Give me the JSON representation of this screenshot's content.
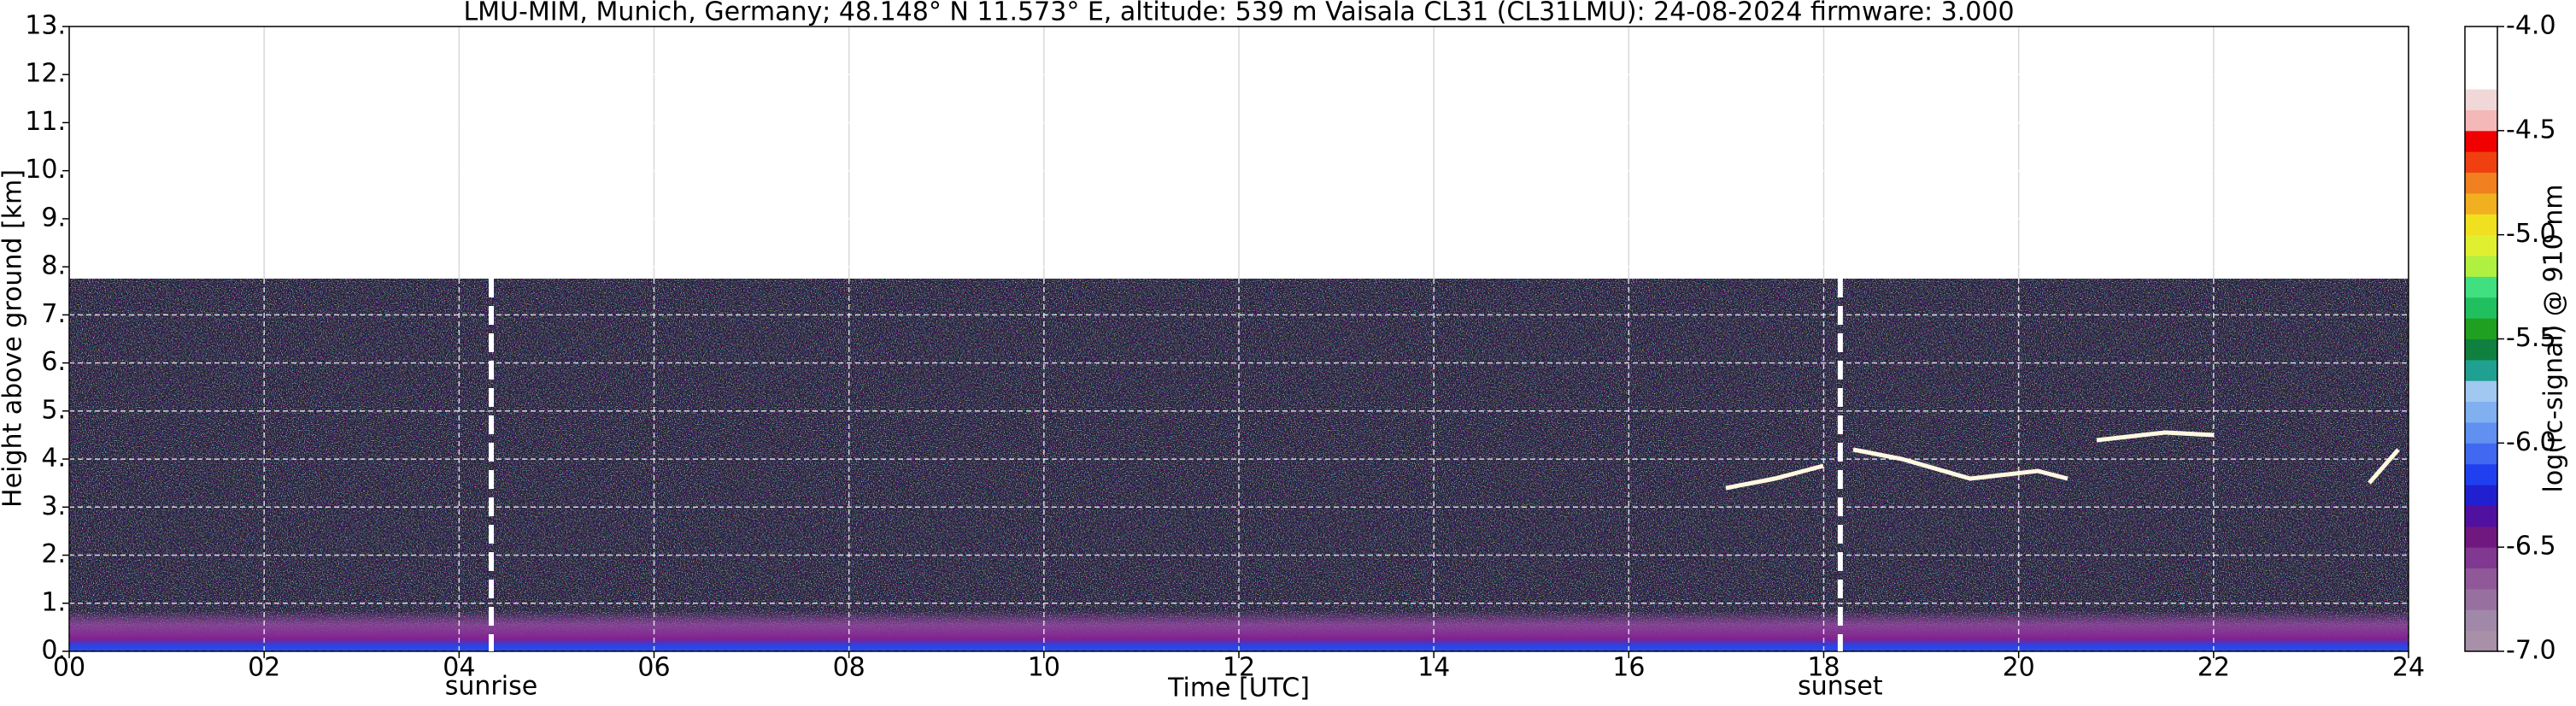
{
  "chart_data": {
    "type": "heatmap",
    "title": "LMU-MIM, Munich, Germany; 48.148° N 11.573° E, altitude: 539 m    Vaisala CL31 (CL31LMU): 24-08-2024    firmware: 3.000",
    "xlabel": "Time [UTC]",
    "ylabel": "Height above ground [km]",
    "xlim": [
      0,
      24
    ],
    "xticks": [
      {
        "value": 0,
        "label": "00"
      },
      {
        "value": 2,
        "label": "02"
      },
      {
        "value": 4,
        "label": "04"
      },
      {
        "value": 6,
        "label": "06"
      },
      {
        "value": 8,
        "label": "08"
      },
      {
        "value": 10,
        "label": "10"
      },
      {
        "value": 12,
        "label": "12"
      },
      {
        "value": 14,
        "label": "14"
      },
      {
        "value": 16,
        "label": "16"
      },
      {
        "value": 18,
        "label": "18"
      },
      {
        "value": 20,
        "label": "20"
      },
      {
        "value": 22,
        "label": "22"
      },
      {
        "value": 24,
        "label": "24"
      }
    ],
    "ylim": [
      0,
      13
    ],
    "yticks": [
      {
        "value": 0,
        "label": "0."
      },
      {
        "value": 1,
        "label": "1."
      },
      {
        "value": 2,
        "label": "2."
      },
      {
        "value": 3,
        "label": "3."
      },
      {
        "value": 4,
        "label": "4."
      },
      {
        "value": 5,
        "label": "5."
      },
      {
        "value": 6,
        "label": "6."
      },
      {
        "value": 7,
        "label": "7."
      },
      {
        "value": 8,
        "label": "8."
      },
      {
        "value": 9,
        "label": "9."
      },
      {
        "value": 10,
        "label": "10."
      },
      {
        "value": 11,
        "label": "11."
      },
      {
        "value": 12,
        "label": "12."
      },
      {
        "value": 13,
        "label": "13."
      }
    ],
    "grid": true,
    "annotations": [
      {
        "x": 4.33,
        "text": "sunrise"
      },
      {
        "x": 18.17,
        "text": "sunset"
      }
    ],
    "colorbar": {
      "label": "log(rc-signal) @ 910 nm",
      "clim": [
        -7,
        -4
      ],
      "ticks": [
        {
          "value": -7,
          "label": "-7.0"
        },
        {
          "value": -6.5,
          "label": "-6.5"
        },
        {
          "value": -6,
          "label": "-6.0"
        },
        {
          "value": -5.5,
          "label": "-5.5"
        },
        {
          "value": -5,
          "label": "-5.0"
        },
        {
          "value": -4.5,
          "label": "-4.5"
        },
        {
          "value": -4,
          "label": "-4.0"
        }
      ],
      "colors": [
        "#a890a8",
        "#a088a8",
        "#9870a0",
        "#905898",
        "#803890",
        "#701880",
        "#5010a0",
        "#2020d0",
        "#2040f0",
        "#4068f0",
        "#6090f0",
        "#80b0f0",
        "#a0c8f0",
        "#20a090",
        "#108040",
        "#20a020",
        "#20c060",
        "#40e080",
        "#b0f040",
        "#e0f030",
        "#f0e020",
        "#f0b020",
        "#f08020",
        "#f04010",
        "#f00000",
        "#f4b8b8",
        "#f0d8d8",
        "#ffffff",
        "#ffffff",
        "#ffffff"
      ]
    }
  }
}
